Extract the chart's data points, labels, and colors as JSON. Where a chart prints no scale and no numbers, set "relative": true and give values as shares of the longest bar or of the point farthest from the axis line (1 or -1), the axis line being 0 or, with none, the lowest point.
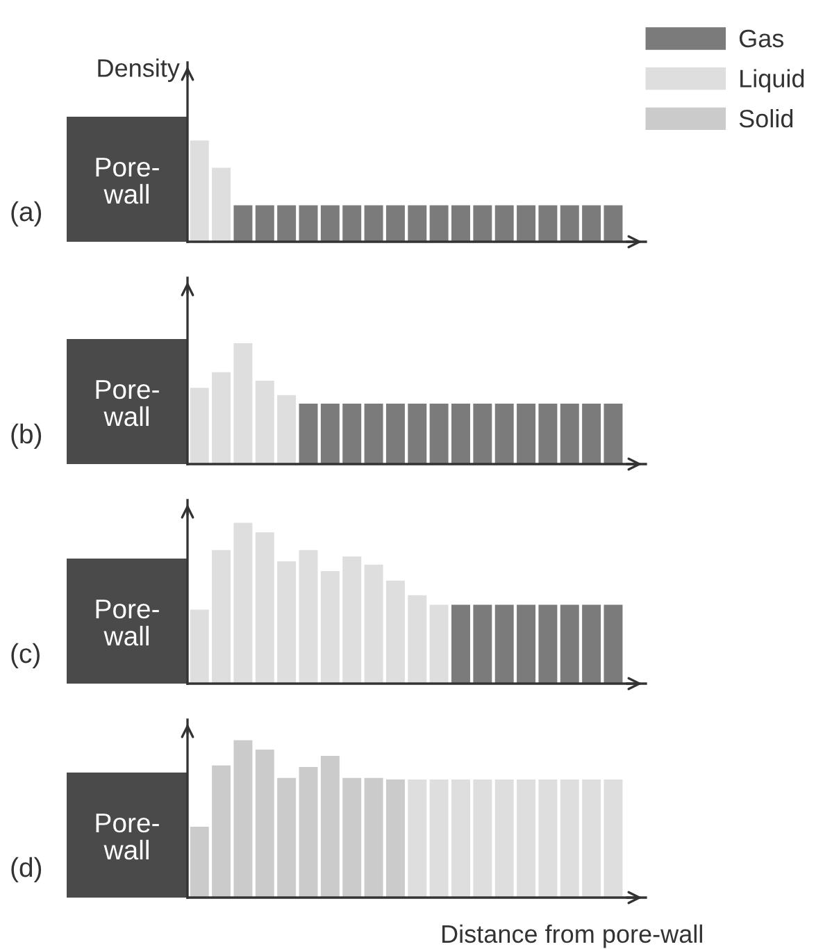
{
  "chart_data": [
    {
      "type": "bar",
      "ylabel": "Density",
      "relative": true,
      "annotations": [
        "(a)",
        "Pore-\nwall"
      ],
      "categories": [
        null,
        null,
        null,
        null,
        null,
        null,
        null,
        null,
        null,
        null,
        null,
        null,
        null,
        null,
        null,
        null,
        null,
        null,
        null,
        null
      ],
      "series": [
        {
          "values": [
            1,
            0.73,
            0.36,
            0.36,
            0.36,
            0.36,
            0.36,
            0.36,
            0.36,
            0.36,
            0.36,
            0.36,
            0.36,
            0.36,
            0.36,
            0.36,
            0.36,
            0.36,
            0.36,
            0.36
          ],
          "colors": [
            "#dedede",
            "#dedede",
            "#7b7b7b",
            "#7b7b7b",
            "#7b7b7b",
            "#7b7b7b",
            "#7b7b7b",
            "#7b7b7b",
            "#7b7b7b",
            "#7b7b7b",
            "#7b7b7b",
            "#7b7b7b",
            "#7b7b7b",
            "#7b7b7b",
            "#7b7b7b",
            "#7b7b7b",
            "#7b7b7b",
            "#7b7b7b",
            "#7b7b7b",
            "#7b7b7b"
          ]
        }
      ]
    },
    {
      "type": "bar",
      "relative": true,
      "annotations": [
        "(b)",
        "Pore-\nwall"
      ],
      "categories": [
        null,
        null,
        null,
        null,
        null,
        null,
        null,
        null,
        null,
        null,
        null,
        null,
        null,
        null,
        null,
        null,
        null,
        null,
        null,
        null
      ],
      "series": [
        {
          "values": [
            0.63,
            0.76,
            1,
            0.69,
            0.57,
            0.5,
            0.5,
            0.5,
            0.5,
            0.5,
            0.5,
            0.5,
            0.5,
            0.5,
            0.5,
            0.5,
            0.5,
            0.5,
            0.5,
            0.5
          ],
          "colors": [
            "#dedede",
            "#dedede",
            "#dedede",
            "#dedede",
            "#dedede",
            "#7b7b7b",
            "#7b7b7b",
            "#7b7b7b",
            "#7b7b7b",
            "#7b7b7b",
            "#7b7b7b",
            "#7b7b7b",
            "#7b7b7b",
            "#7b7b7b",
            "#7b7b7b",
            "#7b7b7b",
            "#7b7b7b",
            "#7b7b7b",
            "#7b7b7b",
            "#7b7b7b"
          ]
        }
      ]
    },
    {
      "type": "bar",
      "relative": true,
      "annotations": [
        "(c)",
        "Pore-\nwall"
      ],
      "categories": [
        null,
        null,
        null,
        null,
        null,
        null,
        null,
        null,
        null,
        null,
        null,
        null,
        null,
        null,
        null,
        null,
        null,
        null,
        null,
        null
      ],
      "series": [
        {
          "values": [
            0.46,
            0.83,
            1,
            0.94,
            0.76,
            0.83,
            0.7,
            0.79,
            0.74,
            0.64,
            0.55,
            0.49,
            0.49,
            0.49,
            0.49,
            0.49,
            0.49,
            0.49,
            0.49,
            0.49
          ],
          "colors": [
            "#dedede",
            "#dedede",
            "#dedede",
            "#dedede",
            "#dedede",
            "#dedede",
            "#dedede",
            "#dedede",
            "#dedede",
            "#dedede",
            "#dedede",
            "#dedede",
            "#7b7b7b",
            "#7b7b7b",
            "#7b7b7b",
            "#7b7b7b",
            "#7b7b7b",
            "#7b7b7b",
            "#7b7b7b",
            "#7b7b7b"
          ]
        }
      ]
    },
    {
      "type": "bar",
      "xlabel": "Distance from pore-wall",
      "relative": true,
      "annotations": [
        "(d)",
        "Pore-\nwall"
      ],
      "categories": [
        null,
        null,
        null,
        null,
        null,
        null,
        null,
        null,
        null,
        null,
        null,
        null,
        null,
        null,
        null,
        null,
        null,
        null,
        null,
        null
      ],
      "series": [
        {
          "values": [
            0.45,
            0.84,
            1,
            0.94,
            0.76,
            0.83,
            0.9,
            0.76,
            0.76,
            0.75,
            0.75,
            0.75,
            0.75,
            0.75,
            0.75,
            0.75,
            0.75,
            0.75,
            0.75,
            0.75
          ],
          "colors": [
            "#cbcbcb",
            "#cbcbcb",
            "#cbcbcb",
            "#cbcbcb",
            "#cbcbcb",
            "#cbcbcb",
            "#cbcbcb",
            "#cbcbcb",
            "#cbcbcb",
            "#cbcbcb",
            "#dedede",
            "#dedede",
            "#dedede",
            "#dedede",
            "#dedede",
            "#dedede",
            "#dedede",
            "#dedede",
            "#dedede",
            "#dedede"
          ]
        }
      ]
    },
    {
      "type": "other",
      "categories": [
        "Gas",
        "Liquid",
        "Solid"
      ],
      "colors": [
        "#7b7b7b",
        "#dedede",
        "#cbcbcb"
      ]
    }
  ]
}
